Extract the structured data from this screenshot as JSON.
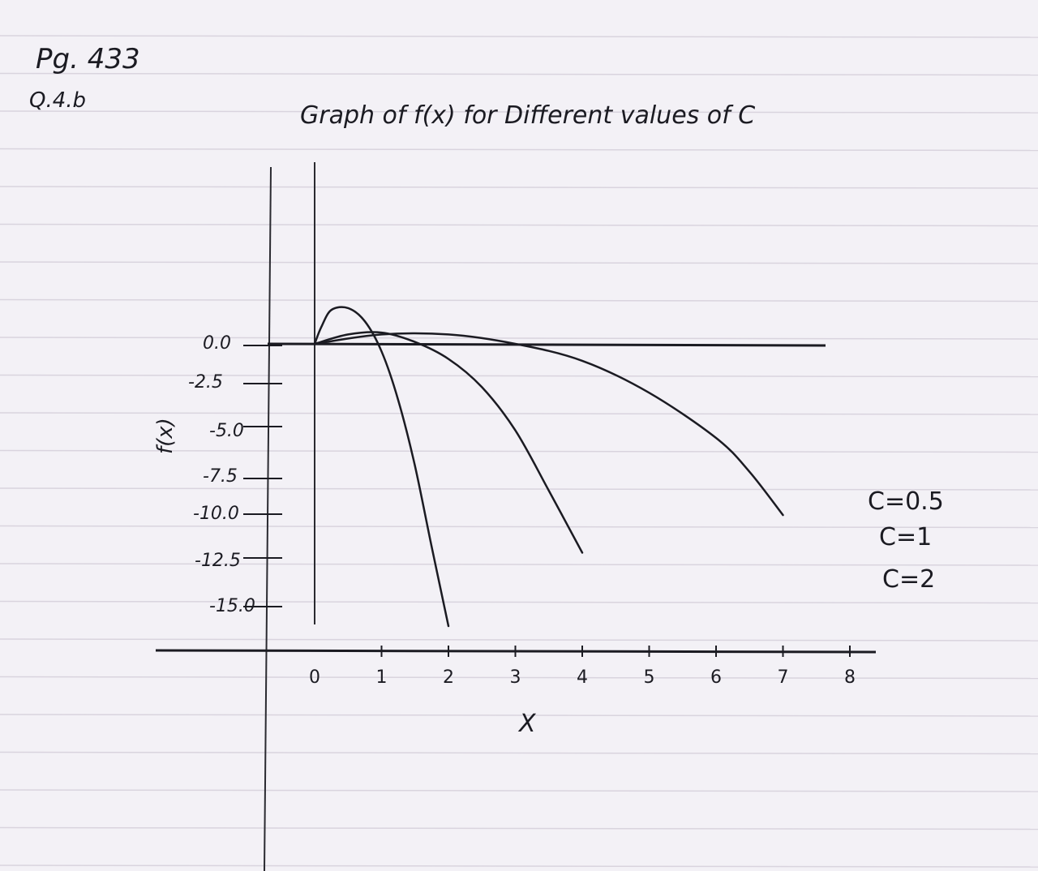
{
  "page": {
    "ref_line1": "Pg. 433",
    "ref_line2": "Q.4.b"
  },
  "colors": {
    "paper": "#f3f1f6",
    "rule": "#d9d4de",
    "ink": "#1b1b22"
  },
  "chart_data": {
    "type": "line",
    "title": "Graph of f(x) for Different values of C",
    "xlabel": "X",
    "ylabel": "f(x)",
    "x_ticks": [
      "0",
      "1",
      "2",
      "3",
      "4",
      "5",
      "6",
      "7",
      "8"
    ],
    "y_ticks": [
      "0.0",
      "-2.5",
      "-5.0",
      "-7.5",
      "-10.0",
      "-12.5",
      "-15.0"
    ],
    "xlim": [
      0,
      8
    ],
    "ylim": [
      -15,
      0
    ],
    "grid": false,
    "legend_position": "right",
    "legend": [
      "C=0.5",
      "C=1",
      "C=2"
    ],
    "series": [
      {
        "name": "C=2",
        "x": [
          0,
          0.1,
          0.25,
          0.5,
          0.75,
          1.0,
          1.25,
          1.5,
          1.75,
          2.0
        ],
        "y": [
          0,
          0.9,
          1.8,
          1.9,
          1.2,
          -0.4,
          -3.0,
          -6.5,
          -10.8,
          -15.0
        ]
      },
      {
        "name": "C=1",
        "x": [
          0,
          0.5,
          1.0,
          1.5,
          2.0,
          2.5,
          3.0,
          3.5,
          4.0
        ],
        "y": [
          0,
          0.5,
          0.6,
          0.1,
          -0.8,
          -2.3,
          -4.6,
          -7.8,
          -11.1
        ]
      },
      {
        "name": "C=0.5",
        "x": [
          0,
          1.0,
          2.0,
          3.0,
          4.0,
          5.0,
          6.0,
          6.5,
          7.0
        ],
        "y": [
          0,
          0.5,
          0.5,
          0.0,
          -0.9,
          -2.6,
          -5.0,
          -6.8,
          -9.1
        ]
      }
    ]
  }
}
